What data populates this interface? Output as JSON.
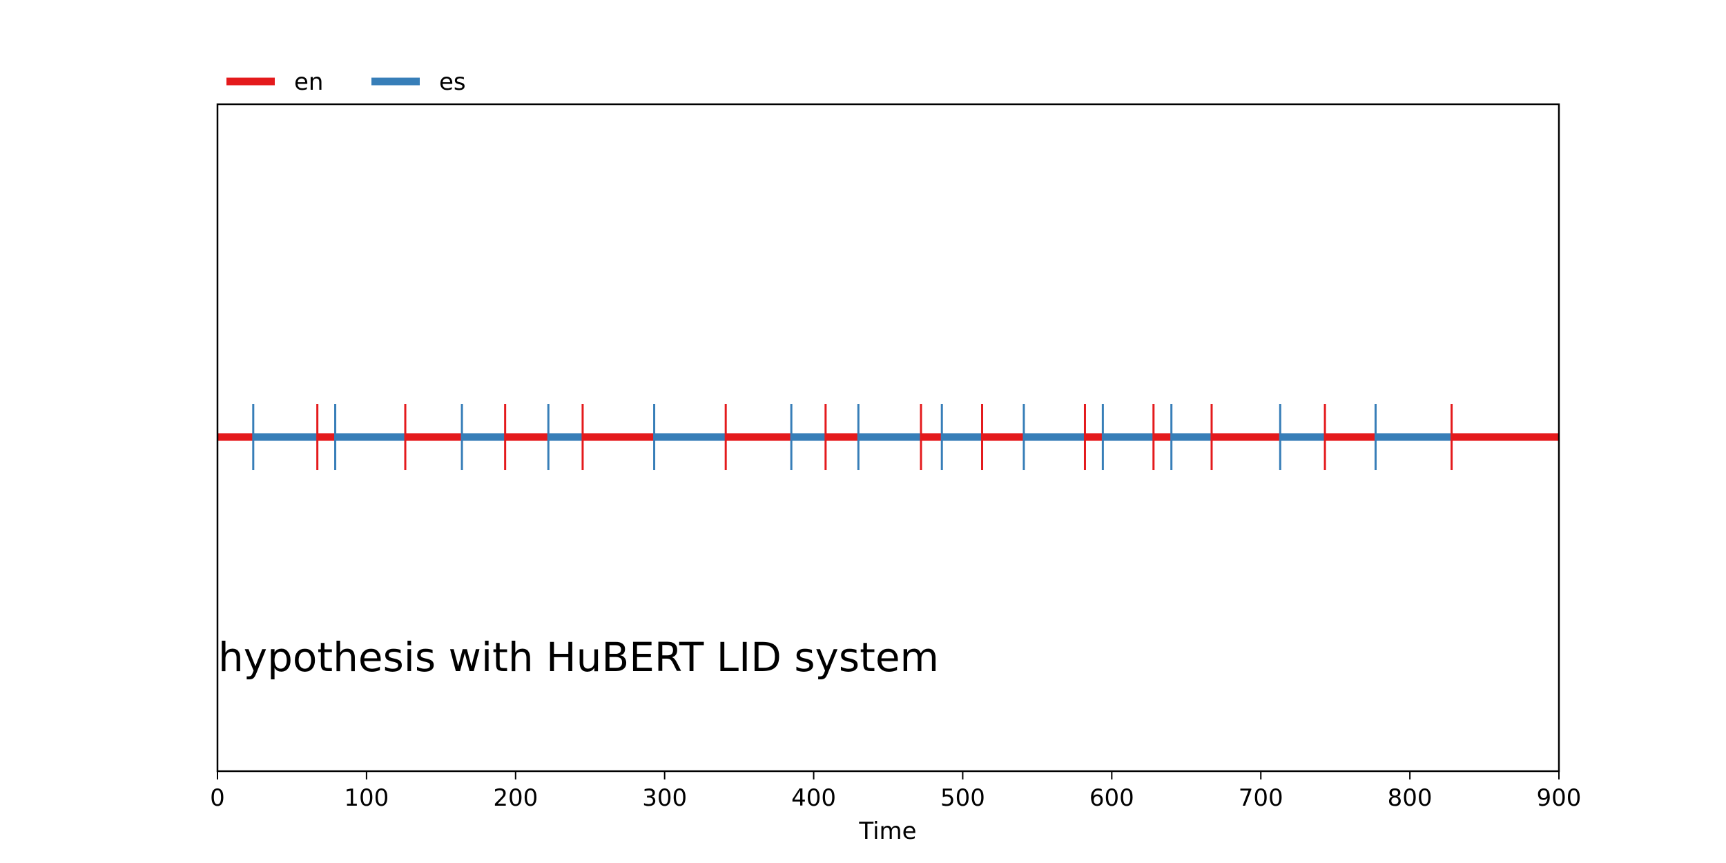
{
  "chart_data": {
    "type": "timeline",
    "xlabel": "Time",
    "xlim": [
      0,
      900
    ],
    "xticks": [
      "0",
      "100",
      "200",
      "300",
      "400",
      "500",
      "600",
      "700",
      "800",
      "900"
    ],
    "annotation": "hypothesis with HuBERT LID system",
    "legend": {
      "placement": "top-left",
      "entries": [
        {
          "name": "en",
          "color": "#e41a1c"
        },
        {
          "name": "es",
          "color": "#377eb8"
        }
      ]
    },
    "segments": [
      {
        "label": "en",
        "start": 0,
        "end": 24
      },
      {
        "label": "es",
        "start": 24,
        "end": 67
      },
      {
        "label": "en",
        "start": 67,
        "end": 79
      },
      {
        "label": "es",
        "start": 79,
        "end": 126
      },
      {
        "label": "en",
        "start": 126,
        "end": 164
      },
      {
        "label": "es",
        "start": 164,
        "end": 193
      },
      {
        "label": "en",
        "start": 193,
        "end": 222
      },
      {
        "label": "es",
        "start": 222,
        "end": 245
      },
      {
        "label": "en",
        "start": 245,
        "end": 293
      },
      {
        "label": "es",
        "start": 293,
        "end": 341
      },
      {
        "label": "en",
        "start": 341,
        "end": 385
      },
      {
        "label": "es",
        "start": 385,
        "end": 408
      },
      {
        "label": "en",
        "start": 408,
        "end": 430
      },
      {
        "label": "es",
        "start": 430,
        "end": 472
      },
      {
        "label": "en",
        "start": 472,
        "end": 486
      },
      {
        "label": "es",
        "start": 486,
        "end": 513
      },
      {
        "label": "en",
        "start": 513,
        "end": 541
      },
      {
        "label": "es",
        "start": 541,
        "end": 582
      },
      {
        "label": "en",
        "start": 582,
        "end": 594
      },
      {
        "label": "es",
        "start": 594,
        "end": 628
      },
      {
        "label": "en",
        "start": 628,
        "end": 640
      },
      {
        "label": "es",
        "start": 640,
        "end": 667
      },
      {
        "label": "en",
        "start": 667,
        "end": 713
      },
      {
        "label": "es",
        "start": 713,
        "end": 743
      },
      {
        "label": "en",
        "start": 743,
        "end": 777
      },
      {
        "label": "es",
        "start": 777,
        "end": 828
      },
      {
        "label": "en",
        "start": 828,
        "end": 900
      }
    ]
  }
}
